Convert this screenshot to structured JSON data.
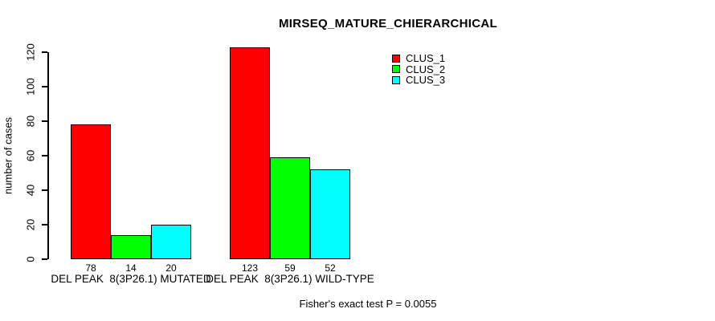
{
  "title": "MIRSEQ_MATURE_CHIERARCHICAL",
  "footer": "Fisher's exact test P = 0.0055",
  "y_axis": {
    "label": "number of cases",
    "ticks": [
      0,
      20,
      40,
      60,
      80,
      100,
      120
    ]
  },
  "legend": {
    "items": [
      {
        "label": "CLUS_1",
        "color": "#FF0000"
      },
      {
        "label": "CLUS_2",
        "color": "#00FF00"
      },
      {
        "label": "CLUS_3",
        "color": "#00FFFF"
      }
    ]
  },
  "chart_data": {
    "type": "bar",
    "title": "MIRSEQ_MATURE_CHIERARCHICAL",
    "ylabel": "number of cases",
    "xlabel": "",
    "ylim": [
      0,
      120
    ],
    "grid": false,
    "legend_position": "top-right",
    "categories": [
      "DEL PEAK  8(3P26.1) MUTATED",
      "DEL PEAK  8(3P26.1) WILD-TYPE"
    ],
    "series": [
      {
        "name": "CLUS_1",
        "color": "#FF0000",
        "values": [
          78,
          123
        ]
      },
      {
        "name": "CLUS_2",
        "color": "#00FF00",
        "values": [
          14,
          59
        ]
      },
      {
        "name": "CLUS_3",
        "color": "#00FFFF",
        "values": [
          20,
          52
        ]
      }
    ],
    "bar_value_labels": [
      [
        78,
        14,
        20
      ],
      [
        123,
        59,
        52
      ]
    ],
    "annotation": "Fisher's exact test P = 0.0055"
  }
}
